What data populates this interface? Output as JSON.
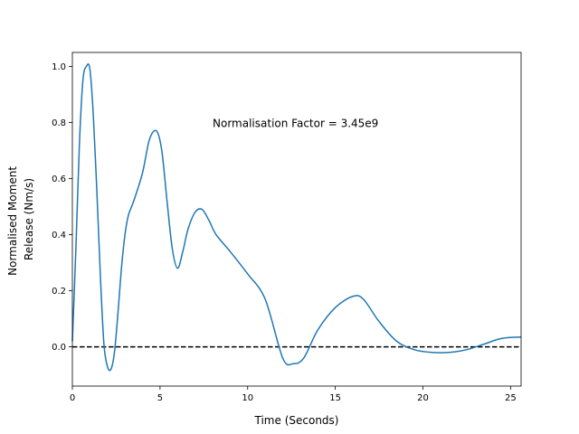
{
  "chart_data": {
    "type": "line",
    "xlabel": "Time (Seconds)",
    "ylabel_lines": [
      "Normalised Moment",
      "Release (Nm/s)"
    ],
    "xlim": [
      0,
      25.6
    ],
    "ylim": [
      -0.14,
      1.05
    ],
    "xticks": [
      0,
      5,
      10,
      15,
      20,
      25
    ],
    "yticks": [
      0.0,
      0.2,
      0.4,
      0.6,
      0.8,
      1.0
    ],
    "grid": false,
    "annotation": {
      "text": "Normalisation Factor = 3.45e9",
      "x": 8.0,
      "y": 0.8
    },
    "reference_line": {
      "y": 0.0,
      "style": "dashed",
      "color": "#000000"
    },
    "series": [
      {
        "color": "#1f77b4",
        "x": [
          0,
          0.2,
          0.4,
          0.6,
          0.8,
          1.0,
          1.2,
          1.4,
          1.6,
          1.8,
          2.0,
          2.2,
          2.4,
          2.6,
          2.8,
          3.0,
          3.2,
          3.5,
          4.0,
          4.4,
          4.8,
          5.1,
          5.4,
          5.7,
          6.0,
          6.3,
          6.6,
          7.0,
          7.4,
          7.8,
          8.2,
          9.0,
          10.0,
          11.0,
          12.0,
          12.6,
          13.2,
          14.0,
          15.0,
          16.0,
          16.6,
          17.5,
          18.5,
          19.5,
          20.5,
          21.5,
          22.5,
          23.5,
          24.5,
          25.6
        ],
        "y": [
          0.02,
          0.35,
          0.72,
          0.95,
          1.0,
          0.99,
          0.82,
          0.55,
          0.25,
          0.01,
          -0.07,
          -0.08,
          -0.02,
          0.12,
          0.28,
          0.4,
          0.47,
          0.52,
          0.62,
          0.74,
          0.77,
          0.7,
          0.52,
          0.35,
          0.28,
          0.34,
          0.42,
          0.48,
          0.49,
          0.45,
          0.4,
          0.34,
          0.26,
          0.17,
          -0.04,
          -0.06,
          -0.04,
          0.06,
          0.14,
          0.18,
          0.17,
          0.09,
          0.02,
          -0.01,
          -0.02,
          -0.02,
          -0.01,
          0.01,
          0.03,
          0.035
        ]
      }
    ]
  }
}
